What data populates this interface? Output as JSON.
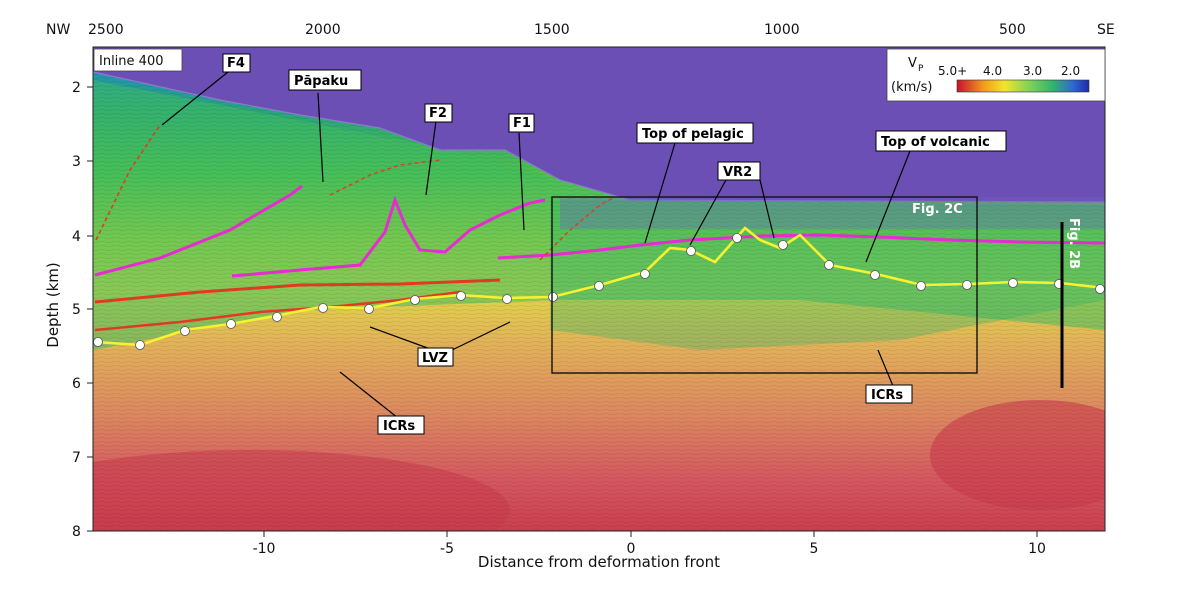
{
  "panel_label": "Inline 400",
  "direction": {
    "left": "NW",
    "right": "SE"
  },
  "top_axis": {
    "ticks": [
      "2500",
      "2000",
      "1500",
      "1000",
      "500"
    ]
  },
  "bottom_axis": {
    "label": "Distance from deformation front",
    "ticks": [
      "-10",
      "-5",
      "0",
      "5",
      "10"
    ]
  },
  "left_axis": {
    "label": "Depth (km)",
    "ticks": [
      "2",
      "3",
      "4",
      "5",
      "6",
      "7",
      "8"
    ]
  },
  "colorbar": {
    "title": "V",
    "title_sub": "P",
    "units": "(km/s)",
    "tick_labels": [
      "5.0+",
      "4.0",
      "3.0",
      "2.0"
    ],
    "colors": [
      "#c8102e",
      "#f29b1d",
      "#f2e52a",
      "#7fd15a",
      "#35b56a",
      "#2e67d1",
      "#1f2aa8"
    ]
  },
  "annotations": {
    "f4": "F4",
    "papaku": "Pāpaku",
    "f2": "F2",
    "f1": "F1",
    "top_pelagic": "Top of pelagic",
    "vr2": "VR2",
    "top_volcanic": "Top of volcanic",
    "fig2c": "Fig. 2C",
    "fig2b": "Fig. 2B",
    "lvz": "LVZ",
    "icrs_left": "ICRs",
    "icrs_right": "ICRs"
  },
  "colors": {
    "water": "#6c4fb4",
    "horizon_magenta": "#e82ad2",
    "fault_red": "#e23a22",
    "horizon_yellow": "#f6f230"
  }
}
